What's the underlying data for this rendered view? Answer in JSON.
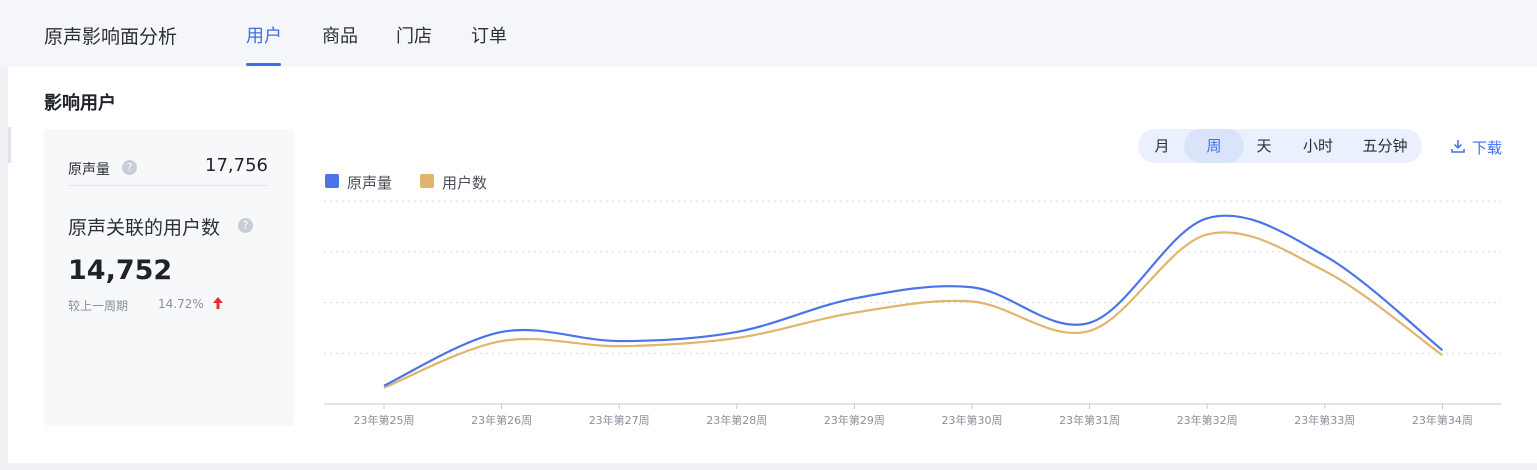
{
  "app_title": "原声影响面分析",
  "tabs": [
    {
      "label": "用户",
      "active": true
    },
    {
      "label": "商品",
      "active": false
    },
    {
      "label": "门店",
      "active": false
    },
    {
      "label": "订单",
      "active": false
    }
  ],
  "section_title": "影响用户",
  "stats": {
    "voice_label": "原声量",
    "voice_value": "17,756",
    "related_label": "原声关联的用户数",
    "related_value": "14,752",
    "compare_label": "较上一周期",
    "compare_value": "14.72%",
    "trend": "up",
    "help_icon": "question-circle-icon",
    "trend_icon": "arrow-up-icon"
  },
  "granularity": {
    "options": [
      "月",
      "周",
      "天",
      "小时",
      "五分钟"
    ],
    "selected": "周"
  },
  "download_label": "下载",
  "colors": {
    "accent": "#3f6ee8",
    "series_voice": "#4a74e8",
    "series_users": "#e0b56e",
    "up": "#e03131"
  },
  "chart_data": {
    "type": "line",
    "categories": [
      "23年第25周",
      "23年第26周",
      "23年第27周",
      "23年第28周",
      "23年第29周",
      "23年第30周",
      "23年第31周",
      "23年第32周",
      "23年第33周",
      "23年第34周"
    ],
    "series": [
      {
        "name": "原声量",
        "color": "#4a74e8",
        "values": [
          18,
          71,
          62,
          71,
          104,
          115,
          80,
          183,
          146,
          53
        ]
      },
      {
        "name": "用户数",
        "color": "#e0b56e",
        "values": [
          16,
          62,
          57,
          65,
          90,
          101,
          72,
          167,
          131,
          48
        ]
      }
    ],
    "ylim": [
      0,
      200
    ],
    "grid": true,
    "legend": "top-left",
    "smooth": true
  }
}
